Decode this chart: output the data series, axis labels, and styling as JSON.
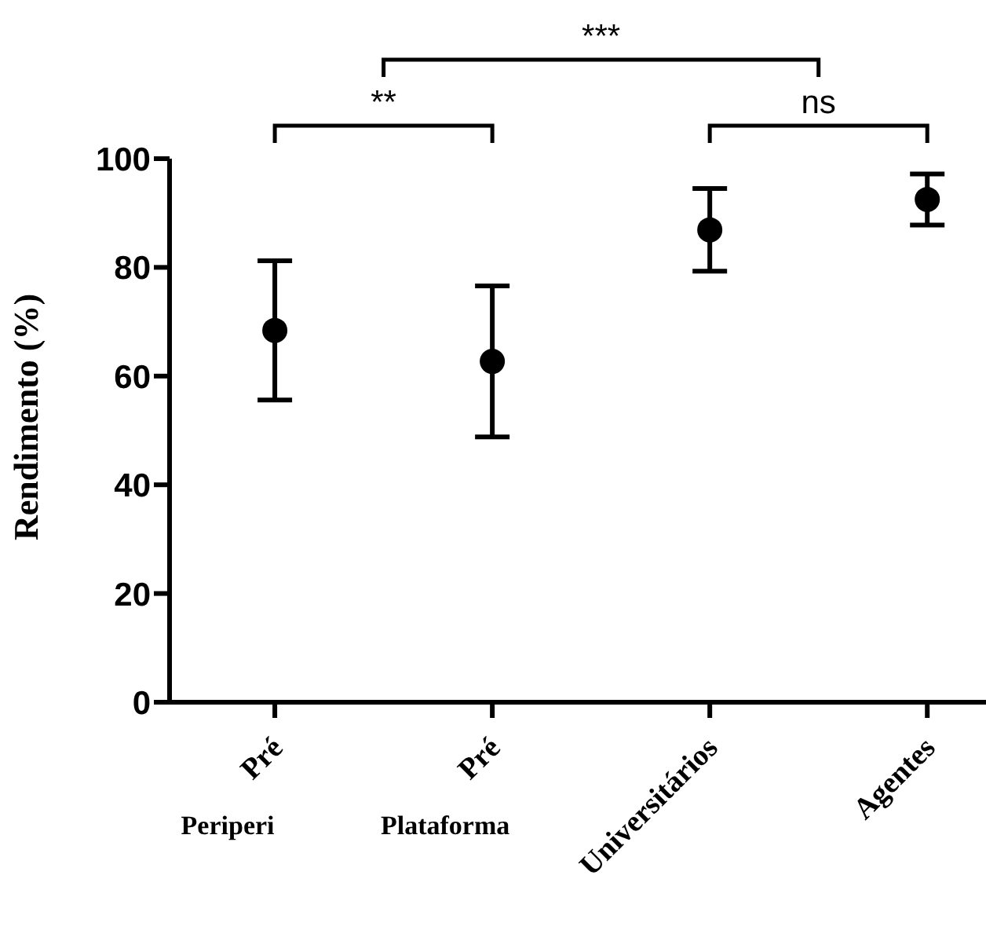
{
  "chart_data": {
    "type": "scatter",
    "categories": [
      "Pré\nPeriperi",
      "Pré\nPlataforma",
      "Universitários",
      "Agentes"
    ],
    "series": [
      {
        "color": "#000000",
        "values": [
          68.4,
          62.7,
          86.9,
          92.5
        ],
        "errors": [
          12.8,
          13.9,
          7.6,
          4.7
        ]
      }
    ],
    "ylabel": "Rendimento (%)",
    "ylim": [
      0,
      100
    ],
    "yticks": [
      0,
      20,
      40,
      60,
      80,
      100
    ],
    "marker": "circle",
    "grid": false,
    "annotations": [
      "**",
      "***",
      "ns"
    ]
  }
}
